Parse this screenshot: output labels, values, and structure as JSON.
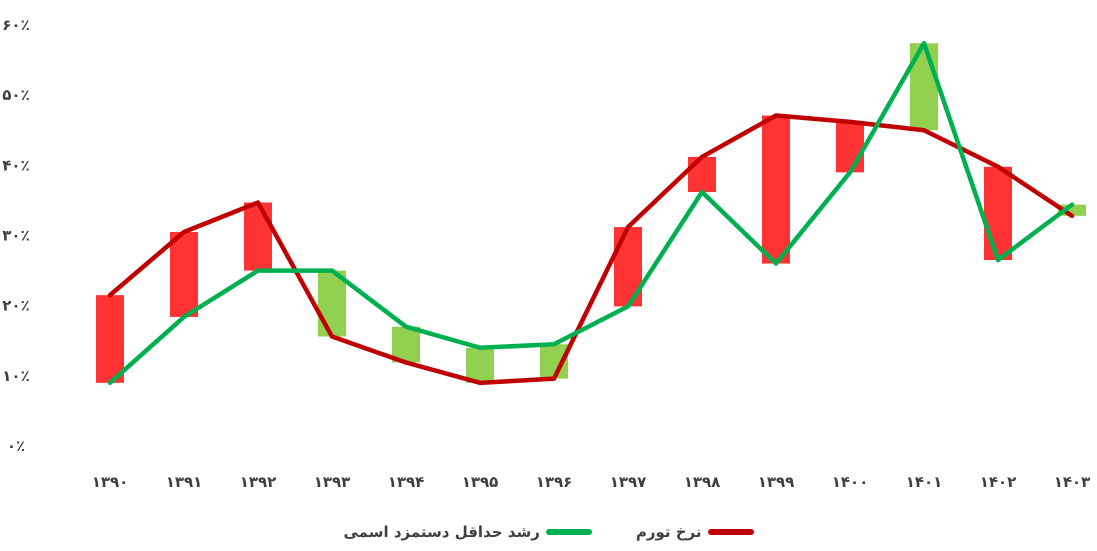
{
  "chart_data": {
    "type": "line",
    "categories": [
      "۱۳۹۰",
      "۱۳۹۱",
      "۱۳۹۲",
      "۱۳۹۳",
      "۱۳۹۴",
      "۱۳۹۵",
      "۱۳۹۶",
      "۱۳۹۷",
      "۱۳۹۸",
      "۱۳۹۹",
      "۱۴۰۰",
      "۱۴۰۱",
      "۱۴۰۲",
      "۱۴۰۳"
    ],
    "yticks": [
      "۰٪",
      "۱۰٪",
      "۲۰٪",
      "۳۰٪",
      "۴۰٪",
      "۵۰٪",
      "۶۰٪"
    ],
    "ylim": [
      0,
      60
    ],
    "grid": false,
    "legend_position": "bottom",
    "series": [
      {
        "name": "نرخ تورم",
        "color": "#C00000",
        "values": [
          21.5,
          30.5,
          34.7,
          15.6,
          11.9,
          9.0,
          9.6,
          31.2,
          41.2,
          47.1,
          46.2,
          45.0,
          39.8,
          32.8
        ]
      },
      {
        "name": "رشد حداقل دستمزد اسمی",
        "color": "#00B050",
        "values": [
          9.0,
          18.4,
          25.0,
          25.0,
          17.0,
          14.0,
          14.5,
          19.9,
          36.2,
          26.0,
          39.0,
          57.4,
          26.5,
          34.4
        ]
      }
    ],
    "bar_colors": {
      "increase": "#92D050",
      "decrease": "#FF3333"
    }
  }
}
